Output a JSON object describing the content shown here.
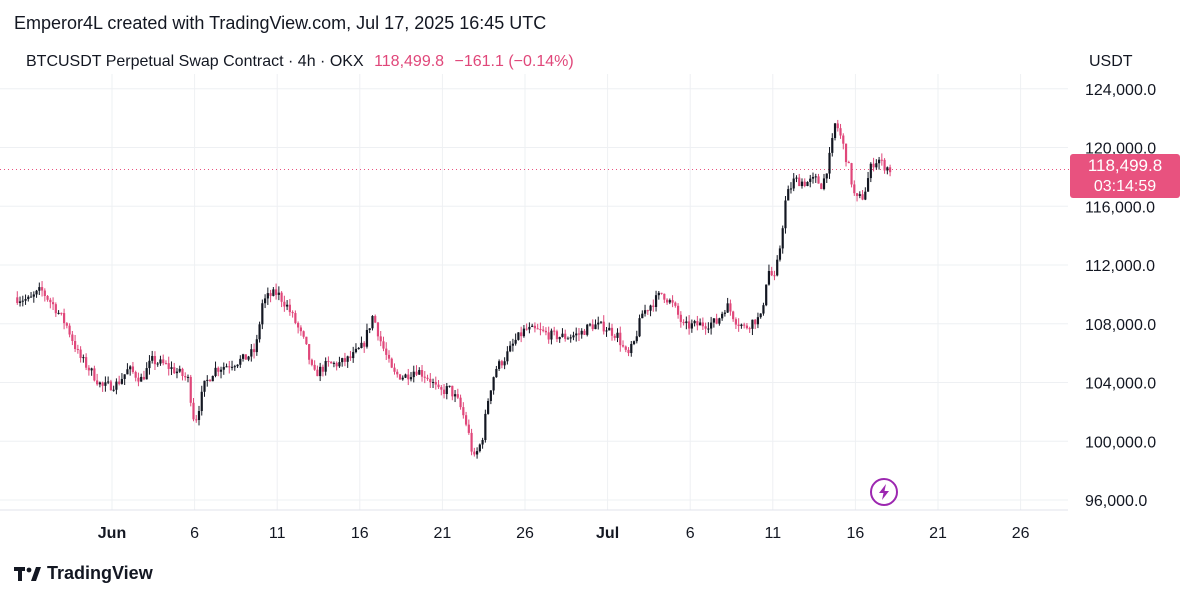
{
  "header": {
    "credit": "Emperor4L created with TradingView.com, Jul 17, 2025 16:45 UTC",
    "symbol": "BTCUSDT Perpetual Swap Contract · 4h · OKX",
    "last_price": "118,499.8",
    "change": "−161.1 (−0.14%)"
  },
  "axis": {
    "unit": "USDT"
  },
  "price_tag": {
    "price": "118,499.8",
    "countdown": "03:14:59"
  },
  "footer": {
    "brand": "TradingView"
  },
  "colors": {
    "up": "#131722",
    "down": "#e0477a",
    "tag": "#e8527f",
    "grid": "#eef0f3"
  },
  "chart_data": {
    "type": "candlestick",
    "interval": "4h",
    "ylim": [
      94500,
      125500
    ],
    "last_price": 118499.8,
    "y_ticks": [
      {
        "value": 96000,
        "label": "96,000.0"
      },
      {
        "value": 100000,
        "label": "100,000.0"
      },
      {
        "value": 104000,
        "label": "104,000.0"
      },
      {
        "value": 108000,
        "label": "108,000.0"
      },
      {
        "value": 112000,
        "label": "112,000.0"
      },
      {
        "value": 116000,
        "label": "116,000.0"
      },
      {
        "value": 120000,
        "label": "120,000.0"
      },
      {
        "value": 124000,
        "label": "124,000.0"
      }
    ],
    "x_ticks": [
      {
        "day": 0,
        "label": "Jun",
        "bold": true
      },
      {
        "day": 5,
        "label": "6"
      },
      {
        "day": 10,
        "label": "11"
      },
      {
        "day": 15,
        "label": "16"
      },
      {
        "day": 20,
        "label": "21"
      },
      {
        "day": 25,
        "label": "26"
      },
      {
        "day": 30,
        "label": "Jul",
        "bold": true
      },
      {
        "day": 35,
        "label": "6"
      },
      {
        "day": 40,
        "label": "11"
      },
      {
        "day": 45,
        "label": "16"
      },
      {
        "day": 50,
        "label": "21"
      },
      {
        "day": 55,
        "label": "26"
      }
    ],
    "close_path": [
      [
        -5.9,
        109800
      ],
      [
        -5.0,
        109600
      ],
      [
        -4.3,
        110300
      ],
      [
        -3.5,
        109200
      ],
      [
        -2.7,
        107800
      ],
      [
        -2.0,
        105800
      ],
      [
        -1.3,
        104800
      ],
      [
        -0.6,
        103700
      ],
      [
        0.3,
        103900
      ],
      [
        1.0,
        104900
      ],
      [
        1.8,
        104200
      ],
      [
        2.4,
        105500
      ],
      [
        3.2,
        105200
      ],
      [
        4.0,
        104700
      ],
      [
        4.6,
        104200
      ],
      [
        5.0,
        101200
      ],
      [
        5.6,
        103800
      ],
      [
        6.2,
        104900
      ],
      [
        7.0,
        105200
      ],
      [
        8.0,
        105600
      ],
      [
        8.7,
        106200
      ],
      [
        9.1,
        109400
      ],
      [
        9.5,
        109900
      ],
      [
        10.0,
        110100
      ],
      [
        10.6,
        109200
      ],
      [
        11.1,
        108100
      ],
      [
        11.7,
        106600
      ],
      [
        12.2,
        104500
      ],
      [
        13.0,
        105200
      ],
      [
        13.8,
        105300
      ],
      [
        14.5,
        105700
      ],
      [
        15.2,
        106500
      ],
      [
        15.8,
        108600
      ],
      [
        16.3,
        106700
      ],
      [
        17.0,
        104600
      ],
      [
        17.7,
        104400
      ],
      [
        18.4,
        104900
      ],
      [
        19.2,
        104300
      ],
      [
        19.8,
        103300
      ],
      [
        20.4,
        103600
      ],
      [
        21.0,
        102600
      ],
      [
        21.5,
        101000
      ],
      [
        21.9,
        98700
      ],
      [
        22.4,
        100100
      ],
      [
        22.8,
        103100
      ],
      [
        23.2,
        104900
      ],
      [
        23.8,
        105700
      ],
      [
        24.4,
        106800
      ],
      [
        25.0,
        107600
      ],
      [
        25.8,
        107500
      ],
      [
        26.6,
        107200
      ],
      [
        27.5,
        107100
      ],
      [
        28.3,
        107300
      ],
      [
        29.0,
        107900
      ],
      [
        29.8,
        107800
      ],
      [
        30.6,
        107200
      ],
      [
        31.2,
        105700
      ],
      [
        31.6,
        106700
      ],
      [
        32.1,
        108700
      ],
      [
        32.7,
        109400
      ],
      [
        33.3,
        110100
      ],
      [
        34.0,
        109200
      ],
      [
        34.6,
        107800
      ],
      [
        35.2,
        107900
      ],
      [
        36.0,
        108000
      ],
      [
        36.6,
        108100
      ],
      [
        37.2,
        109300
      ],
      [
        37.8,
        108200
      ],
      [
        38.3,
        107700
      ],
      [
        38.8,
        108200
      ],
      [
        39.3,
        108400
      ],
      [
        39.7,
        111700
      ],
      [
        40.1,
        111000
      ],
      [
        40.4,
        112900
      ],
      [
        40.8,
        116600
      ],
      [
        41.3,
        117800
      ],
      [
        42.0,
        117600
      ],
      [
        42.6,
        117800
      ],
      [
        43.0,
        117400
      ],
      [
        43.5,
        119600
      ],
      [
        43.8,
        121800
      ],
      [
        44.2,
        120400
      ],
      [
        44.6,
        118600
      ],
      [
        45.0,
        116400
      ],
      [
        45.5,
        116700
      ],
      [
        46.0,
        118900
      ],
      [
        46.4,
        119200
      ],
      [
        46.7,
        118800
      ],
      [
        47.1,
        118500
      ]
    ]
  }
}
